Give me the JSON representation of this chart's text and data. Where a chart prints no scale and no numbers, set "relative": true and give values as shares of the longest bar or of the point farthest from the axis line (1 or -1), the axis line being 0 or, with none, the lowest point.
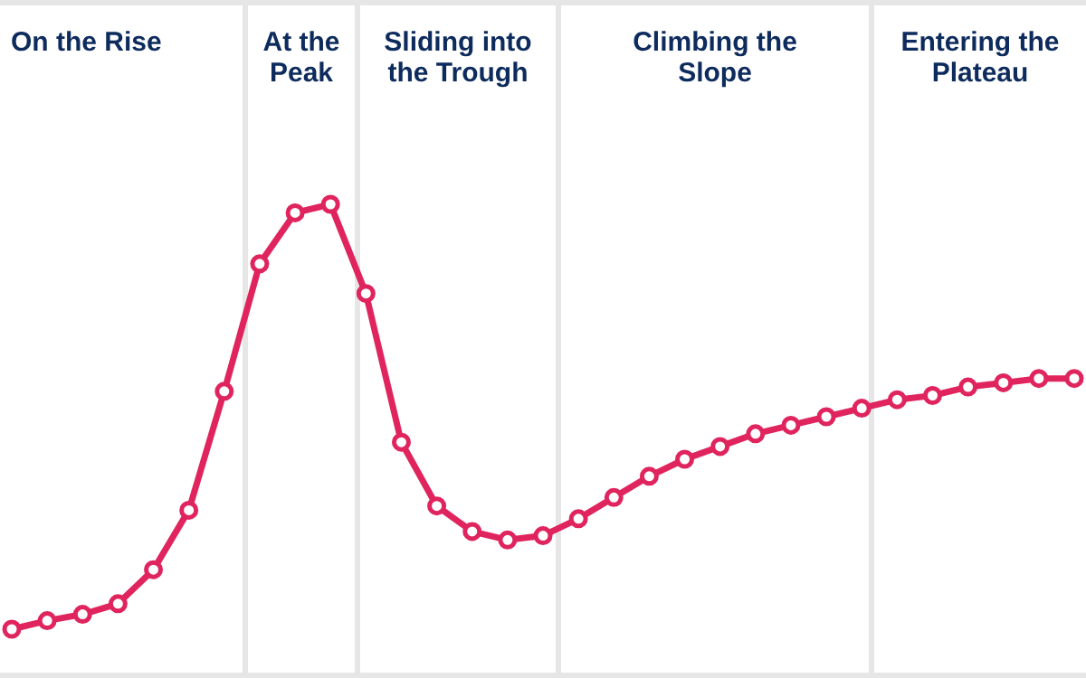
{
  "chart_data": {
    "type": "line",
    "relative": true,
    "marker": "circle",
    "annotations": [
      "On the Rise",
      "At the Peak",
      "Sliding into the Trough",
      "Climbing the Slope",
      "Entering the Plateau"
    ],
    "categories": [
      null,
      null,
      null,
      null,
      null,
      null,
      null,
      null,
      null,
      null,
      null,
      null,
      null,
      null,
      null,
      null,
      null,
      null,
      null,
      null,
      null,
      null,
      null,
      null,
      null,
      null,
      null,
      null,
      null,
      null,
      null
    ],
    "series": [
      {
        "color": "#e0245e",
        "values": [
          0,
          0.02,
          0.035,
          0.06,
          0.14,
          0.28,
          0.56,
          0.86,
          0.98,
          1,
          0.79,
          0.44,
          0.29,
          0.23,
          0.21,
          0.22,
          0.26,
          0.31,
          0.36,
          0.4,
          0.43,
          0.46,
          0.48,
          0.5,
          0.52,
          0.54,
          0.55,
          0.57,
          0.58,
          0.59,
          0.59
        ]
      }
    ]
  }
}
